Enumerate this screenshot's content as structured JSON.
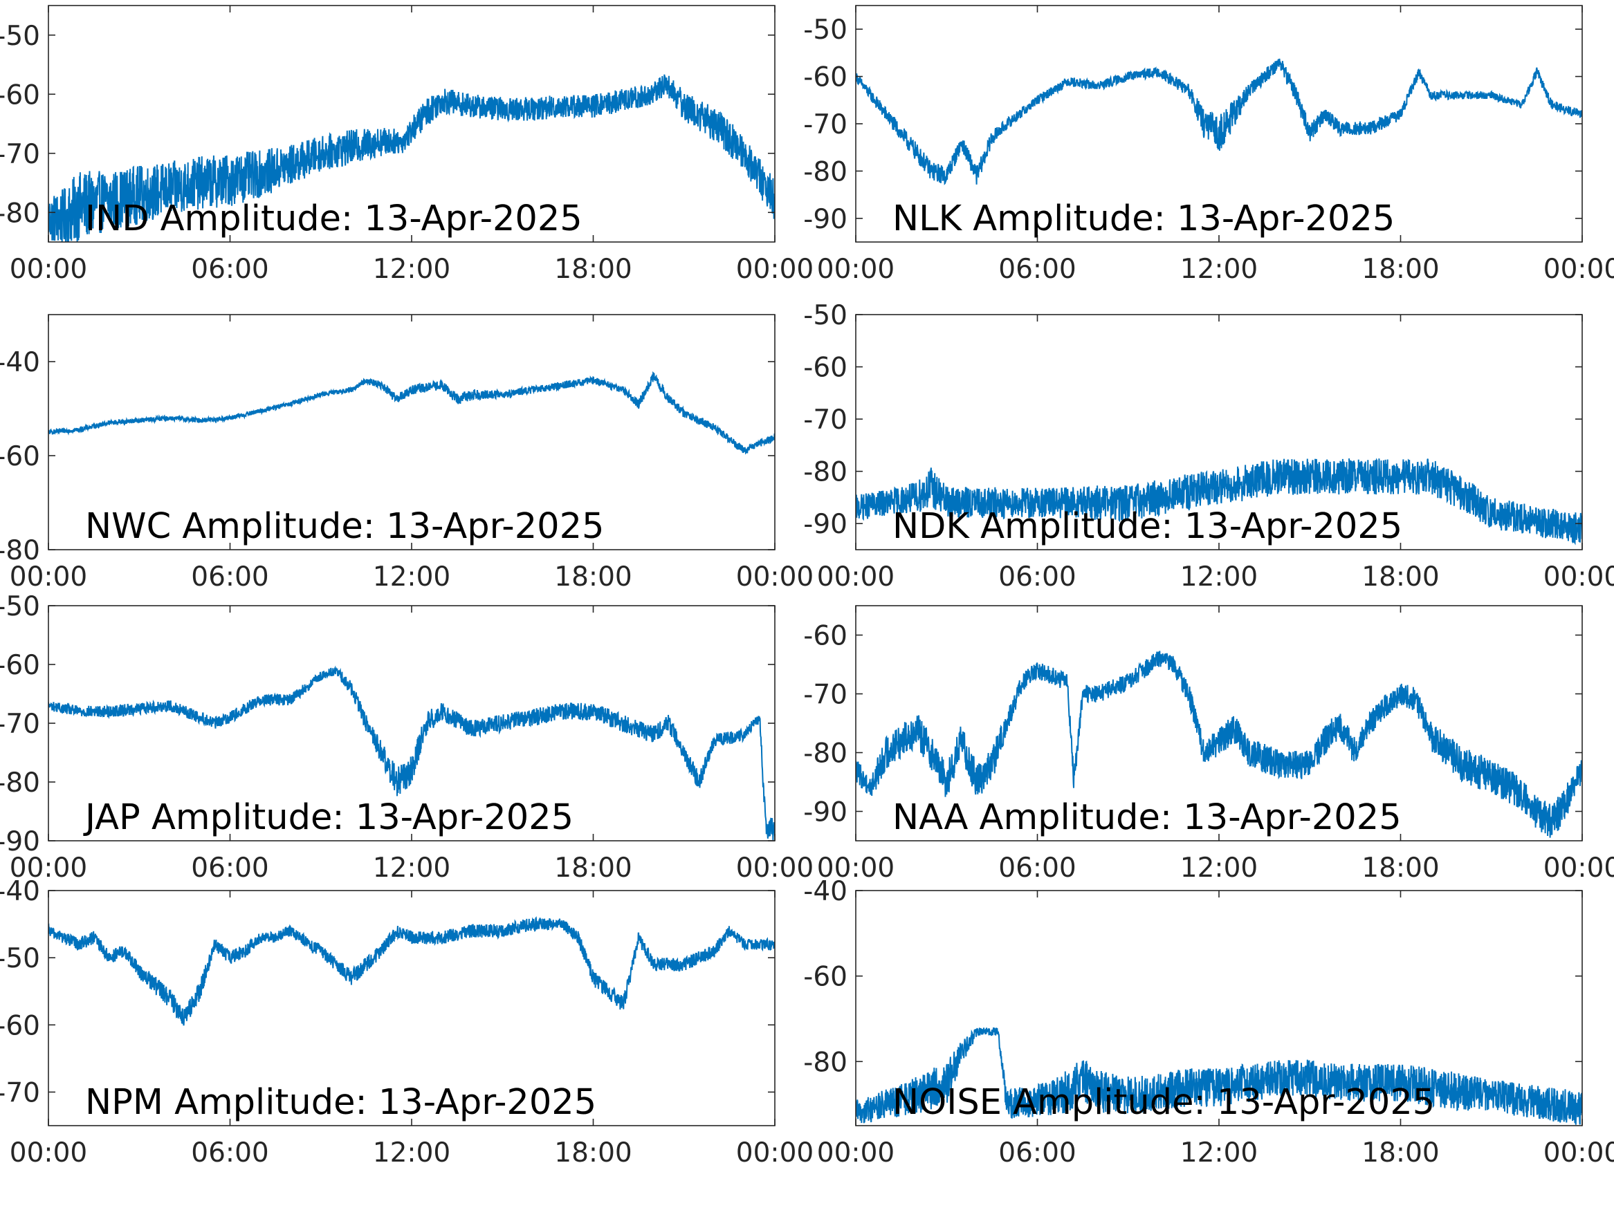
{
  "figure": {
    "background": "#ffffff",
    "line_color": "#0072bd",
    "axis_color": "#262626"
  },
  "chart_data": [
    {
      "type": "line",
      "title": "IND Amplitude: 13-Apr-2025",
      "xlabel": "",
      "ylabel": "",
      "xlim_hours": [
        0,
        24
      ],
      "xticks": [
        "00:00",
        "06:00",
        "12:00",
        "18:00",
        "00:00"
      ],
      "ylim": [
        -85,
        -45
      ],
      "yticks": [
        -50,
        -60,
        -70,
        -80
      ],
      "ytick_labels": [
        "-50",
        "-60",
        "-70",
        "-80"
      ],
      "grid": false,
      "series": [
        {
          "x_hours": [
            0,
            0.5,
            1,
            2,
            3,
            4,
            5,
            6,
            7,
            8,
            9,
            10,
            11,
            11.7,
            12.5,
            13,
            14,
            15,
            16,
            17,
            18,
            19,
            20,
            20.4,
            21,
            22,
            23,
            24
          ],
          "y": [
            -81,
            -81,
            -79,
            -78,
            -77,
            -76,
            -75,
            -74.5,
            -73.5,
            -72,
            -70,
            -69,
            -68,
            -68,
            -63,
            -61,
            -62,
            -62.5,
            -62.5,
            -62,
            -62,
            -61,
            -60,
            -58,
            -62,
            -65,
            -70,
            -78
          ],
          "noise": [
            4,
            5,
            6,
            5,
            5,
            4.5,
            4.5,
            4.5,
            4,
            3.5,
            3,
            3,
            2.5,
            2,
            2.5,
            2.2,
            2,
            2,
            2,
            2,
            2,
            2,
            2,
            2,
            2.5,
            3,
            3,
            3.5
          ]
        }
      ]
    },
    {
      "type": "line",
      "title": "NLK Amplitude: 13-Apr-2025",
      "xlabel": "",
      "ylabel": "",
      "xlim_hours": [
        0,
        24
      ],
      "xticks": [
        "00:00",
        "06:00",
        "12:00",
        "18:00",
        "00:00"
      ],
      "ylim": [
        -95,
        -45
      ],
      "yticks": [
        -50,
        -60,
        -70,
        -80,
        -90
      ],
      "ytick_labels": [
        "-50",
        "-60",
        "-70",
        "-80",
        "-90"
      ],
      "grid": false,
      "series": [
        {
          "x_hours": [
            0,
            1,
            2,
            2.5,
            3,
            3.5,
            4,
            4.5,
            5,
            6,
            7,
            8,
            9,
            10,
            11,
            11.5,
            12,
            12.5,
            13,
            14,
            14.5,
            15,
            15.5,
            16,
            17,
            18,
            18.6,
            19,
            20,
            21,
            22,
            22.5,
            23,
            24
          ],
          "y": [
            -60,
            -68,
            -76,
            -80,
            -81,
            -74,
            -81,
            -73,
            -70,
            -65,
            -61,
            -62,
            -60,
            -59,
            -63,
            -70,
            -72,
            -68,
            -63,
            -57,
            -63,
            -72,
            -68,
            -71,
            -71,
            -68,
            -59,
            -64,
            -64,
            -64,
            -66,
            -59,
            -66,
            -68
          ],
          "noise": [
            1,
            1.5,
            2,
            2,
            2,
            1.5,
            2,
            1.5,
            1.2,
            1,
            1,
            1,
            1,
            1,
            1.5,
            3,
            4,
            3,
            1.5,
            1.5,
            2,
            2,
            1.5,
            1.5,
            1.5,
            1.2,
            1,
            1,
            0.8,
            0.8,
            0.8,
            1,
            1,
            1
          ]
        }
      ]
    },
    {
      "type": "line",
      "title": "NWC Amplitude: 13-Apr-2025",
      "xlabel": "",
      "ylabel": "",
      "xlim_hours": [
        0,
        24
      ],
      "xticks": [
        "00:00",
        "06:00",
        "12:00",
        "18:00",
        "00:00"
      ],
      "ylim": [
        -80,
        -30
      ],
      "yticks": [
        -40,
        -60,
        -80
      ],
      "ytick_labels": [
        "-40",
        "-60",
        "-80"
      ],
      "grid": false,
      "series": [
        {
          "x_hours": [
            0,
            1,
            2,
            3,
            4,
            5,
            6,
            7,
            8,
            9,
            10,
            10.5,
            11,
            11.5,
            12,
            13,
            13.5,
            14,
            15,
            16,
            17,
            18,
            19,
            19.5,
            20,
            20.5,
            21,
            22,
            23,
            24
          ],
          "y": [
            -55,
            -54.5,
            -53,
            -52.5,
            -52,
            -52.5,
            -52,
            -50.5,
            -49,
            -47,
            -46,
            -44,
            -45,
            -48,
            -46,
            -45,
            -48,
            -47,
            -47,
            -46,
            -45,
            -44,
            -46,
            -49,
            -43,
            -48,
            -51,
            -54,
            -59,
            -56
          ],
          "noise": [
            0.5,
            0.5,
            0.5,
            0.5,
            0.5,
            0.5,
            0.5,
            0.5,
            0.5,
            0.5,
            0.5,
            0.6,
            0.8,
            1,
            1,
            1,
            1.2,
            1.2,
            0.8,
            0.8,
            0.8,
            0.8,
            0.8,
            1,
            1,
            1,
            1,
            0.8,
            0.8,
            0.8
          ]
        }
      ]
    },
    {
      "type": "line",
      "title": "NDK Amplitude: 13-Apr-2025",
      "xlabel": "",
      "ylabel": "",
      "xlim_hours": [
        0,
        24
      ],
      "xticks": [
        "00:00",
        "06:00",
        "12:00",
        "18:00",
        "00:00"
      ],
      "ylim": [
        -95,
        -50
      ],
      "yticks": [
        -50,
        -60,
        -70,
        -80,
        -90
      ],
      "ytick_labels": [
        "-50",
        "-60",
        "-70",
        "-80",
        "-90"
      ],
      "grid": false,
      "series": [
        {
          "x_hours": [
            0,
            1,
            2,
            2.5,
            3,
            4,
            5,
            6,
            7,
            8,
            9,
            10,
            11,
            12,
            13,
            14,
            15,
            16,
            17,
            18,
            19,
            20,
            21,
            22,
            23,
            24
          ],
          "y": [
            -87,
            -86,
            -85,
            -83,
            -86,
            -86,
            -86,
            -86,
            -86,
            -86,
            -86,
            -85,
            -84,
            -83,
            -82,
            -81,
            -81,
            -81,
            -81,
            -81,
            -81,
            -84,
            -88,
            -89,
            -90,
            -91
          ],
          "noise": [
            2.5,
            2.5,
            3,
            4,
            3,
            3,
            3,
            3,
            3,
            3.5,
            3.5,
            3.5,
            3.5,
            3.5,
            3.5,
            3.5,
            3.5,
            3.5,
            3.5,
            3.5,
            3.5,
            3.5,
            3,
            3,
            3,
            3
          ]
        }
      ]
    },
    {
      "type": "line",
      "title": "JAP Amplitude: 13-Apr-2025",
      "xlabel": "",
      "ylabel": "",
      "xlim_hours": [
        0,
        24
      ],
      "xticks": [
        "00:00",
        "06:00",
        "12:00",
        "18:00",
        "00:00"
      ],
      "ylim": [
        -90,
        -50
      ],
      "yticks": [
        -50,
        -60,
        -70,
        -80,
        -90
      ],
      "ytick_labels": [
        "-50",
        "-60",
        "-70",
        "-80",
        "-90"
      ],
      "grid": false,
      "series": [
        {
          "x_hours": [
            0,
            1,
            2,
            3,
            4,
            5,
            5.5,
            6,
            7,
            8,
            9,
            9.5,
            10,
            10.5,
            11,
            11.5,
            12,
            12.5,
            13,
            14,
            15,
            16,
            17,
            18,
            19,
            20,
            20.5,
            21,
            21.5,
            22,
            23,
            23.5,
            23.7,
            24
          ],
          "y": [
            -67,
            -68,
            -68,
            -67.5,
            -67,
            -69,
            -70,
            -69,
            -66,
            -66,
            -62,
            -61,
            -64,
            -70,
            -75,
            -80,
            -78,
            -70,
            -68,
            -71,
            -70,
            -69,
            -68,
            -68,
            -70,
            -72,
            -70,
            -75,
            -80,
            -73,
            -72,
            -69,
            -88,
            -88
          ],
          "noise": [
            0.8,
            1,
            1,
            1,
            1,
            1,
            1,
            1,
            1,
            1,
            0.8,
            0.8,
            1.2,
            1.5,
            2,
            2.5,
            2.5,
            2,
            1.5,
            1.5,
            1.5,
            1.5,
            1.5,
            1.5,
            1.5,
            1.5,
            1.5,
            1.5,
            1.5,
            1.2,
            1,
            1,
            2,
            2
          ]
        }
      ]
    },
    {
      "type": "line",
      "title": "NAA Amplitude: 13-Apr-2025",
      "xlabel": "",
      "ylabel": "",
      "xlim_hours": [
        0,
        24
      ],
      "xticks": [
        "00:00",
        "06:00",
        "12:00",
        "18:00",
        "00:00"
      ],
      "ylim": [
        -95,
        -55
      ],
      "yticks": [
        -60,
        -70,
        -80,
        -90
      ],
      "ytick_labels": [
        "-60",
        "-70",
        "-80",
        "-90"
      ],
      "grid": false,
      "series": [
        {
          "x_hours": [
            0,
            0.5,
            1,
            1.5,
            2,
            2.5,
            3,
            3.5,
            4,
            4.5,
            5,
            5.5,
            6,
            6.5,
            7,
            7.2,
            7.5,
            8,
            9,
            9.5,
            10,
            10.5,
            11,
            11.5,
            12,
            12.5,
            13,
            14,
            15,
            15.5,
            16,
            16.5,
            17,
            17.5,
            18,
            18.5,
            19,
            20,
            21,
            22,
            22.5,
            23,
            23.5,
            24
          ],
          "y": [
            -83,
            -86,
            -80,
            -78,
            -76,
            -80,
            -85,
            -78,
            -85,
            -82,
            -75,
            -68,
            -66,
            -67,
            -68,
            -85,
            -70,
            -70,
            -68,
            -66,
            -64,
            -65,
            -70,
            -80,
            -78,
            -76,
            -80,
            -82,
            -82,
            -78,
            -75,
            -80,
            -75,
            -72,
            -70,
            -71,
            -77,
            -82,
            -84,
            -87,
            -90,
            -92,
            -88,
            -83
          ],
          "noise": [
            2,
            2,
            3,
            3,
            3,
            3,
            3,
            3,
            3,
            3,
            2,
            1.5,
            1.5,
            1.5,
            1.5,
            2,
            1.5,
            1.5,
            1.5,
            1.5,
            1.5,
            1.5,
            2,
            2,
            2.5,
            2.5,
            2.5,
            2.5,
            2.5,
            2.5,
            2.5,
            2.5,
            2,
            2,
            2,
            2,
            2.5,
            3,
            3,
            3,
            3,
            3,
            3,
            2
          ]
        }
      ]
    },
    {
      "type": "line",
      "title": "NPM Amplitude: 13-Apr-2025",
      "xlabel": "",
      "ylabel": "",
      "xlim_hours": [
        0,
        24
      ],
      "xticks": [
        "00:00",
        "06:00",
        "12:00",
        "18:00",
        "00:00"
      ],
      "ylim": [
        -75,
        -40
      ],
      "yticks": [
        -40,
        -50,
        -60,
        -70
      ],
      "ytick_labels": [
        "-40",
        "-50",
        "-60",
        "-70"
      ],
      "grid": false,
      "series": [
        {
          "x_hours": [
            0,
            1,
            1.5,
            2,
            2.5,
            3,
            4,
            4.5,
            5,
            5.5,
            6,
            6.5,
            7,
            7.5,
            8,
            9,
            9.5,
            10,
            10.5,
            11,
            11.5,
            12,
            13,
            14,
            15,
            16,
            17,
            17.5,
            18,
            18.5,
            19,
            19.5,
            20,
            21,
            22,
            22.5,
            23,
            24
          ],
          "y": [
            -46,
            -48,
            -47,
            -50,
            -49,
            -52,
            -56,
            -59,
            -55,
            -48,
            -50,
            -49,
            -47,
            -47,
            -46,
            -49,
            -51,
            -53,
            -51,
            -49,
            -46,
            -47,
            -47,
            -46,
            -46,
            -45,
            -45,
            -47,
            -53,
            -55,
            -57,
            -47,
            -51,
            -51,
            -49,
            -46,
            -48,
            -48
          ],
          "noise": [
            0.8,
            1,
            1,
            1,
            1,
            1.2,
            1.5,
            1.5,
            1.5,
            1,
            1,
            1,
            0.8,
            0.8,
            0.8,
            1,
            1,
            1.2,
            1.2,
            1,
            1,
            1,
            1,
            1,
            1,
            1,
            0.8,
            1,
            1.2,
            1.2,
            1.2,
            1,
            1,
            1,
            1,
            0.8,
            0.8,
            0.8
          ]
        }
      ]
    },
    {
      "type": "line",
      "title": "NOISE Amplitude: 13-Apr-2025",
      "xlabel": "",
      "ylabel": "",
      "xlim_hours": [
        0,
        24
      ],
      "xticks": [
        "00:00",
        "06:00",
        "12:00",
        "18:00",
        "00:00"
      ],
      "ylim": [
        -95,
        -40
      ],
      "yticks": [
        -40,
        -60,
        -80
      ],
      "ytick_labels": [
        "-40",
        "-60",
        "-80"
      ],
      "grid": false,
      "series": [
        {
          "x_hours": [
            0,
            1,
            2,
            3,
            3.5,
            4,
            4.3,
            4.7,
            5,
            6,
            7,
            7.5,
            8,
            9,
            10,
            11,
            12,
            13,
            14,
            15,
            16,
            17,
            18,
            19,
            20,
            21,
            22,
            23,
            24
          ],
          "y": [
            -92,
            -90,
            -88,
            -85,
            -78,
            -73,
            -73,
            -73,
            -90,
            -89,
            -87,
            -84,
            -87,
            -88,
            -87,
            -86,
            -86,
            -85,
            -84,
            -84,
            -85,
            -85,
            -85,
            -86,
            -87,
            -88,
            -89,
            -90,
            -91
          ],
          "noise": [
            3,
            3.5,
            4.5,
            5,
            3,
            1,
            1,
            1,
            3.5,
            4,
            5,
            5,
            5,
            4.5,
            4.5,
            4.5,
            4.5,
            4.5,
            4.5,
            4.5,
            4.5,
            4.5,
            4.5,
            4.5,
            4.5,
            4,
            4,
            4,
            4
          ]
        }
      ]
    }
  ]
}
